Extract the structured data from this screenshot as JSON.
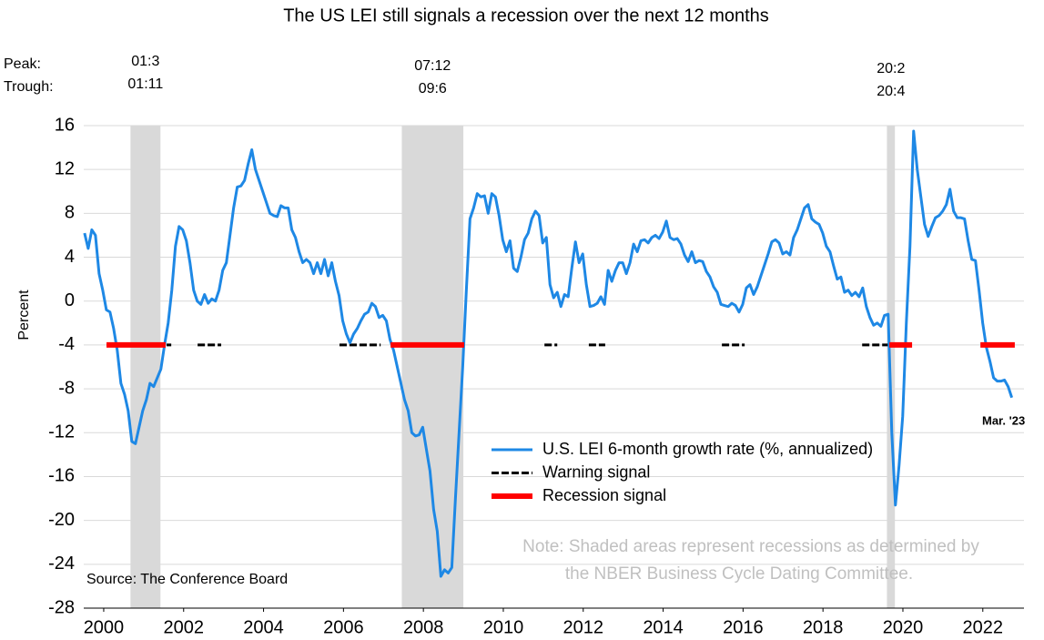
{
  "chart_data": {
    "type": "line",
    "title": "The US LEI still signals a recession over the next 12 months",
    "y_label": "Percent",
    "source": "Source: The Conference Board",
    "note": [
      "Note: Shaded areas represent recessions as determined by",
      "the NBER Business Cycle Dating Committee."
    ],
    "end_label": "Mar. '23",
    "peak_label": "Peak:",
    "trough_label": "Trough:",
    "recessions": [
      {
        "peak": "01:3",
        "trough": "01:11",
        "start": 2001.17,
        "end": 2001.92
      },
      {
        "peak": "07:12",
        "trough": "09:6",
        "start": 2007.96,
        "end": 2009.5
      },
      {
        "peak": "20:2",
        "trough": "20:4",
        "start": 2020.1,
        "end": 2020.3
      }
    ],
    "shade_color": "#d9d9d9",
    "xlim": [
      2000,
      2023.53
    ],
    "xticks": [
      {
        "value": 2000.5,
        "label": "2000"
      },
      {
        "value": 2002.5,
        "label": "2002"
      },
      {
        "value": 2004.5,
        "label": "2004"
      },
      {
        "value": 2006.5,
        "label": "2006"
      },
      {
        "value": 2008.5,
        "label": "2008"
      },
      {
        "value": 2010.5,
        "label": "2010"
      },
      {
        "value": 2012.5,
        "label": "2012"
      },
      {
        "value": 2014.5,
        "label": "2014"
      },
      {
        "value": 2016.5,
        "label": "2016"
      },
      {
        "value": 2018.5,
        "label": "2018"
      },
      {
        "value": 2020.5,
        "label": "2020"
      },
      {
        "value": 2022.5,
        "label": "2022"
      }
    ],
    "ylim": [
      -28,
      16
    ],
    "yticks": [
      -28,
      -24,
      -20,
      -16,
      -12,
      -8,
      -4,
      0,
      4,
      8,
      12,
      16
    ],
    "grid": true,
    "legend": "lower right",
    "series": [
      {
        "name": "U.S. LEI 6-month growth rate (%, annualized)",
        "color": "#1e88e5",
        "x": [
          2000.02,
          2000.111,
          2000.202,
          2000.293,
          2000.384,
          2000.475,
          2000.566,
          2000.657,
          2000.748,
          2000.839,
          2000.93,
          2001.021,
          2001.112,
          2001.203,
          2001.294,
          2001.385,
          2001.476,
          2001.567,
          2001.658,
          2001.749,
          2001.84,
          2001.931,
          2002.022,
          2002.113,
          2002.204,
          2002.295,
          2002.386,
          2002.477,
          2002.568,
          2002.659,
          2002.75,
          2002.841,
          2002.932,
          2003.023,
          2003.114,
          2003.205,
          2003.296,
          2003.387,
          2003.478,
          2003.569,
          2003.66,
          2003.751,
          2003.842,
          2003.933,
          2004.024,
          2004.115,
          2004.206,
          2004.297,
          2004.388,
          2004.479,
          2004.57,
          2004.661,
          2004.752,
          2004.843,
          2004.934,
          2005.025,
          2005.116,
          2005.207,
          2005.298,
          2005.389,
          2005.48,
          2005.571,
          2005.662,
          2005.753,
          2005.844,
          2005.935,
          2006.026,
          2006.117,
          2006.208,
          2006.299,
          2006.39,
          2006.481,
          2006.572,
          2006.663,
          2006.754,
          2006.845,
          2006.936,
          2007.027,
          2007.118,
          2007.209,
          2007.3,
          2007.391,
          2007.482,
          2007.573,
          2007.664,
          2007.755,
          2007.846,
          2007.937,
          2008.028,
          2008.119,
          2008.21,
          2008.301,
          2008.392,
          2008.483,
          2008.574,
          2008.665,
          2008.756,
          2008.847,
          2008.938,
          2009.029,
          2009.12,
          2009.211,
          2009.302,
          2009.393,
          2009.484,
          2009.575,
          2009.666,
          2009.757,
          2009.848,
          2009.939,
          2010.03,
          2010.121,
          2010.212,
          2010.303,
          2010.394,
          2010.485,
          2010.576,
          2010.667,
          2010.758,
          2010.849,
          2010.94,
          2011.031,
          2011.122,
          2011.213,
          2011.304,
          2011.395,
          2011.486,
          2011.577,
          2011.668,
          2011.759,
          2011.85,
          2011.941,
          2012.032,
          2012.123,
          2012.214,
          2012.305,
          2012.396,
          2012.487,
          2012.578,
          2012.669,
          2012.76,
          2012.851,
          2012.942,
          2013.033,
          2013.124,
          2013.215,
          2013.306,
          2013.397,
          2013.488,
          2013.579,
          2013.67,
          2013.761,
          2013.852,
          2013.943,
          2014.034,
          2014.125,
          2014.216,
          2014.307,
          2014.398,
          2014.489,
          2014.58,
          2014.671,
          2014.762,
          2014.853,
          2014.944,
          2015.035,
          2015.126,
          2015.217,
          2015.308,
          2015.399,
          2015.49,
          2015.581,
          2015.672,
          2015.763,
          2015.854,
          2015.945,
          2016.036,
          2016.127,
          2016.218,
          2016.309,
          2016.4,
          2016.491,
          2016.582,
          2016.673,
          2016.764,
          2016.855,
          2016.946,
          2017.037,
          2017.128,
          2017.219,
          2017.31,
          2017.401,
          2017.492,
          2017.583,
          2017.674,
          2017.765,
          2017.856,
          2017.947,
          2018.038,
          2018.129,
          2018.22,
          2018.311,
          2018.402,
          2018.493,
          2018.584,
          2018.675,
          2018.766,
          2018.857,
          2018.948,
          2019.039,
          2019.13,
          2019.221,
          2019.312,
          2019.403,
          2019.494,
          2019.585,
          2019.676,
          2019.767,
          2019.858,
          2019.949,
          2020.04,
          2020.131,
          2020.222,
          2020.313,
          2020.404,
          2020.495,
          2020.586,
          2020.677,
          2020.768,
          2020.859,
          2020.95,
          2021.041,
          2021.132,
          2021.223,
          2021.314,
          2021.405,
          2021.496,
          2021.587,
          2021.678,
          2021.769,
          2021.86,
          2021.951,
          2022.042,
          2022.133,
          2022.224,
          2022.315,
          2022.406,
          2022.497,
          2022.588,
          2022.679,
          2022.77,
          2022.861,
          2022.952,
          2023.043,
          2023.134,
          2023.225
        ],
        "values": [
          6.2,
          4.8,
          6.5,
          6.0,
          2.5,
          1.0,
          -0.8,
          -1.0,
          -2.5,
          -4.5,
          -7.5,
          -8.5,
          -10,
          -12.8,
          -13,
          -11.5,
          -10,
          -9,
          -7.5,
          -7.8,
          -7,
          -6.2,
          -4,
          -2,
          1,
          5,
          6.8,
          6.5,
          5.5,
          3.5,
          1,
          0,
          -0.3,
          0.6,
          -0.2,
          0.2,
          0,
          1,
          2.8,
          3.5,
          6,
          8.5,
          10.4,
          10.5,
          11,
          12.5,
          13.8,
          12,
          11,
          10,
          9,
          8,
          7.8,
          7.7,
          8.7,
          8.5,
          8.5,
          6.5,
          5.8,
          4.5,
          3.5,
          3.8,
          3.5,
          2.5,
          3.5,
          2.5,
          3.8,
          2.3,
          3.5,
          1.8,
          0.5,
          -1.8,
          -3,
          -3.8,
          -3,
          -2.5,
          -1.8,
          -1.2,
          -1,
          -0.2,
          -0.5,
          -1.5,
          -1.3,
          -1.8,
          -3.5,
          -4.5,
          -6,
          -7.5,
          -9,
          -10,
          -12,
          -12.3,
          -12.2,
          -11.5,
          -13.5,
          -15.5,
          -19,
          -21,
          -25.1,
          -24.5,
          -24.8,
          -24.3,
          -18,
          -12,
          -6,
          1,
          7.5,
          8.5,
          9.8,
          9.5,
          9.6,
          8,
          9.8,
          9.5,
          7.8,
          5.6,
          4.5,
          5.5,
          3,
          2.7,
          4,
          5.6,
          6.2,
          7.5,
          8.2,
          7.8,
          5.3,
          5.8,
          1.5,
          0.3,
          0.8,
          -0.5,
          0.6,
          0.4,
          3,
          5.4,
          3.5,
          4.3,
          1.5,
          -0.5,
          -0.4,
          -0.2,
          0.4,
          -0.3,
          2.8,
          1.8,
          2.8,
          3.5,
          3.5,
          2.5,
          3.5,
          5.2,
          4.5,
          5.5,
          5.6,
          5.3,
          5.8,
          6.0,
          5.7,
          6.3,
          7.3,
          5.8,
          5.6,
          5.7,
          5.2,
          4.2,
          3.6,
          4.5,
          3.5,
          3.7,
          3.6,
          2.7,
          2.2,
          1.3,
          0.8,
          -0.3,
          -0.4,
          -0.5,
          -0.2,
          -0.4,
          -1,
          -0.3,
          1.2,
          1.5,
          0.6,
          1.3,
          2.3,
          3.3,
          4.3,
          5.4,
          5.6,
          5.3,
          4.3,
          4.5,
          4.2,
          5.8,
          6.5,
          7.5,
          8.5,
          8.8,
          7.5,
          7.2,
          7.0,
          6.2,
          5.0,
          4.5,
          3.2,
          2.0,
          2.2,
          0.8,
          1.0,
          0.5,
          0.8,
          0.4,
          1.2,
          -0.5,
          -1.5,
          -2.2,
          -2.0,
          -2.3,
          -1.3,
          -1.2,
          -12,
          -18.6,
          -15,
          -10.5,
          -2,
          5,
          15.5,
          12,
          9.5,
          7,
          5.9,
          6.8,
          7.6,
          7.8,
          8.2,
          8.8,
          10.2,
          8.2,
          7.6,
          7.6,
          7.5,
          5.5,
          3.8,
          3.7,
          1,
          -2,
          -4.2,
          -5.5,
          -7.0,
          -7.3,
          -7.3,
          -7.2,
          -7.8,
          -8.8
        ]
      },
      {
        "name": "Warning signal",
        "color": "#000000",
        "value": -4,
        "periods": [
          [
            2000.57,
            2002.19
          ],
          [
            2002.85,
            2003.44
          ],
          [
            2006.4,
            2007.43
          ],
          [
            2011.53,
            2011.85
          ],
          [
            2012.64,
            2013.05
          ],
          [
            2015.97,
            2016.54
          ],
          [
            2019.48,
            2020.16
          ]
        ]
      },
      {
        "name": "Recession signal",
        "color": "#ff0000",
        "value": -4,
        "periods": [
          [
            2000.57,
            2002.05
          ],
          [
            2007.68,
            2009.52
          ],
          [
            2020.16,
            2020.73
          ],
          [
            2022.44,
            2023.3
          ]
        ]
      }
    ]
  }
}
